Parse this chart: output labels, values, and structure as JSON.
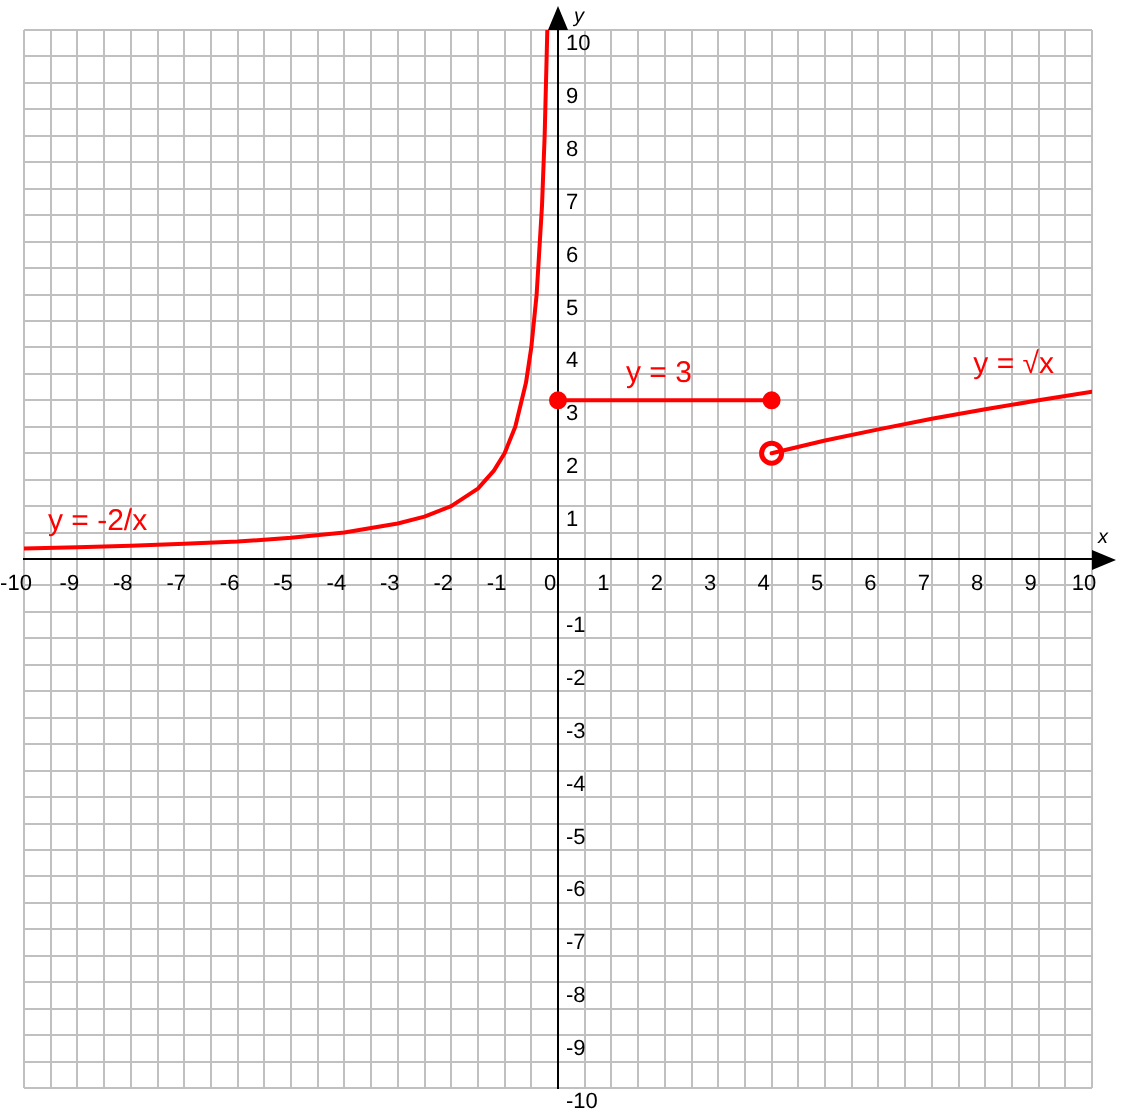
{
  "chart_data": {
    "type": "line",
    "xlabel": "x",
    "ylabel": "y",
    "xlim": [
      -10,
      10
    ],
    "ylim": [
      -10,
      10
    ],
    "xticks": [
      -10,
      {
        "value": -9.5,
        "label": null
      },
      -9,
      {
        "value": -8.5,
        "label": null
      },
      -8,
      {
        "value": -7.5,
        "label": null
      },
      -7,
      {
        "value": -6.5,
        "label": null
      },
      -6,
      {
        "value": -5.5,
        "label": null
      },
      -5,
      {
        "value": -4.5,
        "label": null
      },
      -4,
      {
        "value": -3.5,
        "label": null
      },
      -3,
      {
        "value": -2.5,
        "label": null
      },
      -2,
      {
        "value": -1.5,
        "label": null
      },
      -1,
      {
        "value": -0.5,
        "label": null
      },
      0,
      {
        "value": 0.5,
        "label": null
      },
      1,
      {
        "value": 1.5,
        "label": null
      },
      2,
      {
        "value": 2.5,
        "label": null
      },
      3,
      {
        "value": 3.5,
        "label": null
      },
      4,
      {
        "value": 4.5,
        "label": null
      },
      5,
      {
        "value": 5.5,
        "label": null
      },
      6,
      {
        "value": 6.5,
        "label": null
      },
      7,
      {
        "value": 7.5,
        "label": null
      },
      8,
      {
        "value": 8.5,
        "label": null
      },
      9,
      {
        "value": 9.5,
        "label": null
      },
      10
    ],
    "yticks": [
      -10,
      {
        "value": -9.5,
        "label": null
      },
      -9,
      {
        "value": -8.5,
        "label": null
      },
      -8,
      {
        "value": -7.5,
        "label": null
      },
      -7,
      {
        "value": -6.5,
        "label": null
      },
      -6,
      {
        "value": -5.5,
        "label": null
      },
      -5,
      {
        "value": -4.5,
        "label": null
      },
      -4,
      {
        "value": -3.5,
        "label": null
      },
      -3,
      {
        "value": -2.5,
        "label": null
      },
      -2,
      {
        "value": -1.5,
        "label": null
      },
      -1,
      {
        "value": -0.5,
        "label": null
      },
      {
        "value": 0,
        "label": null
      },
      {
        "value": 0.5,
        "label": null
      },
      1,
      {
        "value": 1.5,
        "label": null
      },
      2,
      {
        "value": 2.5,
        "label": null
      },
      3,
      {
        "value": 3.5,
        "label": null
      },
      4,
      {
        "value": 4.5,
        "label": null
      },
      5,
      {
        "value": 5.5,
        "label": null
      },
      6,
      {
        "value": 6.5,
        "label": null
      },
      7,
      {
        "value": 7.5,
        "label": null
      },
      8,
      {
        "value": 8.5,
        "label": null
      },
      9,
      {
        "value": 9.5,
        "label": null
      },
      10
    ],
    "grid": true,
    "legend": false,
    "series": [
      {
        "color": "#ff0000",
        "marker": "none",
        "x": [
          -10,
          -9,
          -8,
          -7,
          -6,
          -5,
          -4,
          -3,
          -2.5,
          -2,
          -1.5,
          -1.2,
          -1,
          -0.8,
          -0.6,
          -0.5,
          -0.4,
          -0.3,
          -0.25,
          -0.2
        ],
        "values": [
          0.2,
          0.22,
          0.25,
          0.29,
          0.33,
          0.4,
          0.5,
          0.67,
          0.8,
          1,
          1.33,
          1.67,
          2,
          2.5,
          3.33,
          4,
          5,
          6.67,
          8,
          10
        ]
      },
      {
        "color": "#ff0000",
        "marker": "circle",
        "x": [
          0,
          4
        ],
        "values": [
          3,
          3
        ]
      },
      {
        "color": "#ff0000",
        "marker": "none",
        "x": [
          4,
          5,
          6,
          7,
          8,
          9,
          10
        ],
        "values": [
          2,
          2.24,
          2.45,
          2.65,
          2.83,
          3,
          3.16
        ]
      },
      {
        "type": "scatter",
        "color": "#ff0000",
        "marker": "circle",
        "x": [
          4
        ],
        "values": [
          2
        ]
      }
    ],
    "annotations": [
      "y = -2/x",
      "y = 3",
      "y = √x"
    ]
  }
}
